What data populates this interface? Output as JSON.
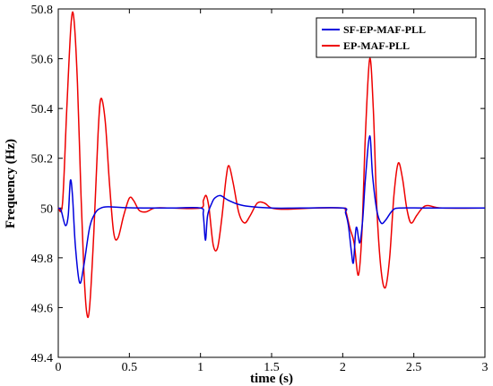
{
  "chart_data": {
    "type": "line",
    "title": "",
    "xlabel": "time (s)",
    "ylabel": "Frequency (Hz)",
    "xlim": [
      0,
      3
    ],
    "ylim": [
      49.4,
      50.8
    ],
    "xticks": [
      0,
      0.5,
      1,
      1.5,
      2,
      2.5,
      3
    ],
    "xtick_labels": [
      "0",
      "0.5",
      "1",
      "1.5",
      "2",
      "2.5",
      "3"
    ],
    "yticks": [
      49.4,
      49.6,
      49.8,
      50,
      50.2,
      50.4,
      50.6,
      50.8
    ],
    "ytick_labels": [
      "49.4",
      "49.6",
      "49.8",
      "50",
      "50.2",
      "50.4",
      "50.6",
      "50.8"
    ],
    "grid": false,
    "legend": "top-right",
    "series": [
      {
        "name": "SF-EP-MAF-PLL",
        "color": "#0000dd",
        "points": [
          [
            0,
            50
          ],
          [
            0.02,
            49.99
          ],
          [
            0.05,
            49.93
          ],
          [
            0.07,
            49.97
          ],
          [
            0.085,
            50.11
          ],
          [
            0.1,
            50.05
          ],
          [
            0.12,
            49.85
          ],
          [
            0.15,
            49.7
          ],
          [
            0.18,
            49.77
          ],
          [
            0.22,
            49.92
          ],
          [
            0.26,
            49.98
          ],
          [
            0.3,
            50.0
          ],
          [
            0.35,
            50.005
          ],
          [
            0.45,
            50.002
          ],
          [
            0.6,
            50.0
          ],
          [
            0.8,
            50.0
          ],
          [
            1.0,
            50.0
          ],
          [
            1.02,
            49.97
          ],
          [
            1.035,
            49.87
          ],
          [
            1.05,
            49.97
          ],
          [
            1.08,
            50.02
          ],
          [
            1.1,
            50.04
          ],
          [
            1.14,
            50.05
          ],
          [
            1.2,
            50.03
          ],
          [
            1.3,
            50.01
          ],
          [
            1.5,
            50.0
          ],
          [
            1.7,
            50.0
          ],
          [
            2.0,
            50.0
          ],
          [
            2.02,
            49.98
          ],
          [
            2.04,
            49.93
          ],
          [
            2.06,
            49.83
          ],
          [
            2.075,
            49.78
          ],
          [
            2.09,
            49.9
          ],
          [
            2.1,
            49.92
          ],
          [
            2.12,
            49.86
          ],
          [
            2.14,
            49.95
          ],
          [
            2.16,
            50.12
          ],
          [
            2.19,
            50.29
          ],
          [
            2.21,
            50.13
          ],
          [
            2.24,
            49.99
          ],
          [
            2.27,
            49.94
          ],
          [
            2.3,
            49.95
          ],
          [
            2.35,
            49.99
          ],
          [
            2.4,
            50.0
          ],
          [
            2.6,
            50.0
          ],
          [
            3,
            50
          ]
        ]
      },
      {
        "name": "EP-MAF-PLL",
        "color": "#ee0000",
        "points": [
          [
            0,
            50
          ],
          [
            0.03,
            50.02
          ],
          [
            0.06,
            50.4
          ],
          [
            0.09,
            50.74
          ],
          [
            0.11,
            50.76
          ],
          [
            0.135,
            50.5
          ],
          [
            0.16,
            50.05
          ],
          [
            0.18,
            49.75
          ],
          [
            0.2,
            49.58
          ],
          [
            0.22,
            49.6
          ],
          [
            0.25,
            49.9
          ],
          [
            0.28,
            50.3
          ],
          [
            0.3,
            50.44
          ],
          [
            0.33,
            50.35
          ],
          [
            0.36,
            50.1
          ],
          [
            0.39,
            49.9
          ],
          [
            0.42,
            49.88
          ],
          [
            0.46,
            49.97
          ],
          [
            0.5,
            50.04
          ],
          [
            0.53,
            50.03
          ],
          [
            0.57,
            49.99
          ],
          [
            0.62,
            49.985
          ],
          [
            0.68,
            50.0
          ],
          [
            0.8,
            50.0
          ],
          [
            1.0,
            50.0
          ],
          [
            1.02,
            50.03
          ],
          [
            1.04,
            50.05
          ],
          [
            1.06,
            50.0
          ],
          [
            1.09,
            49.85
          ],
          [
            1.12,
            49.84
          ],
          [
            1.15,
            49.96
          ],
          [
            1.18,
            50.12
          ],
          [
            1.2,
            50.17
          ],
          [
            1.23,
            50.1
          ],
          [
            1.27,
            49.98
          ],
          [
            1.31,
            49.94
          ],
          [
            1.35,
            49.97
          ],
          [
            1.4,
            50.02
          ],
          [
            1.45,
            50.02
          ],
          [
            1.5,
            50.0
          ],
          [
            1.6,
            49.995
          ],
          [
            1.8,
            50.0
          ],
          [
            2.0,
            50.0
          ],
          [
            2.02,
            49.99
          ],
          [
            2.05,
            49.92
          ],
          [
            2.08,
            49.86
          ],
          [
            2.11,
            49.73
          ],
          [
            2.135,
            49.9
          ],
          [
            2.16,
            50.3
          ],
          [
            2.19,
            50.6
          ],
          [
            2.215,
            50.4
          ],
          [
            2.24,
            50.0
          ],
          [
            2.27,
            49.75
          ],
          [
            2.3,
            49.68
          ],
          [
            2.33,
            49.8
          ],
          [
            2.36,
            50.05
          ],
          [
            2.39,
            50.18
          ],
          [
            2.42,
            50.12
          ],
          [
            2.45,
            50.0
          ],
          [
            2.48,
            49.94
          ],
          [
            2.52,
            49.97
          ],
          [
            2.56,
            50.0
          ],
          [
            2.6,
            50.01
          ],
          [
            2.7,
            50.0
          ],
          [
            3,
            50
          ]
        ]
      }
    ]
  }
}
